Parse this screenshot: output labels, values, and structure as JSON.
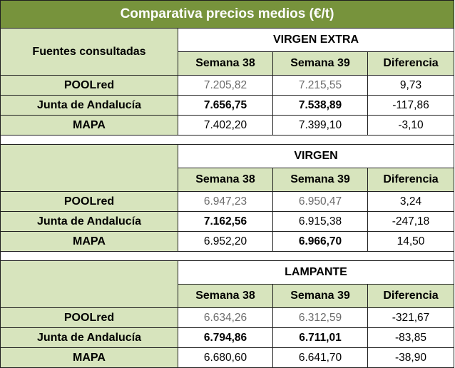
{
  "title": "Comparativa precios medios (€/t)",
  "sources_header": "Fuentes consultadas",
  "columns": {
    "week_a": "Semana 38",
    "week_b": "Semana 39",
    "diff": "Diferencia"
  },
  "sections": [
    {
      "category": "VIRGEN EXTRA",
      "rows": [
        {
          "source": "POOLred",
          "week_a": "7.205,82",
          "week_b": "7.215,55",
          "diff": "9,73"
        },
        {
          "source": "Junta de Andalucía",
          "week_a": "7.656,75",
          "week_b": "7.538,89",
          "diff": "-117,86"
        },
        {
          "source": "MAPA",
          "week_a": "7.402,20",
          "week_b": "7.399,10",
          "diff": "-3,10"
        }
      ]
    },
    {
      "category": "VIRGEN",
      "rows": [
        {
          "source": "POOLred",
          "week_a": "6.947,23",
          "week_b": "6.950,47",
          "diff": "3,24"
        },
        {
          "source": "Junta de Andalucía",
          "week_a": "7.162,56",
          "week_b": "6.915,38",
          "diff": "-247,18"
        },
        {
          "source": "MAPA",
          "week_a": "6.952,20",
          "week_b": "6.966,70",
          "diff": "14,50"
        }
      ]
    },
    {
      "category": "LAMPANTE",
      "rows": [
        {
          "source": "POOLred",
          "week_a": "6.634,26",
          "week_b": "6.312,59",
          "diff": "-321,67"
        },
        {
          "source": "Junta de Andalucía",
          "week_a": "6.794,86",
          "week_b": "6.711,01",
          "diff": "-83,85"
        },
        {
          "source": "MAPA",
          "week_a": "6.680,60",
          "week_b": "6.641,70",
          "diff": "-38,90"
        }
      ]
    }
  ]
}
